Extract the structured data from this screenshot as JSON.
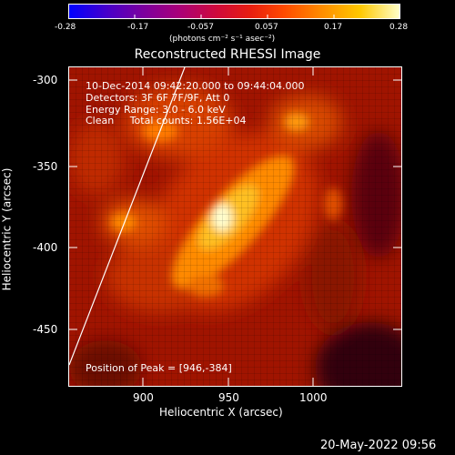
{
  "colorbar": {
    "ticks": [
      "-0.28",
      "-0.17",
      "-0.057",
      "0.057",
      "0.17",
      "0.28"
    ],
    "units": "(photons cm⁻² s⁻¹ asec⁻²)"
  },
  "plot": {
    "title": "Reconstructed RHESSI Image",
    "xlabel": "Heliocentric X (arcsec)",
    "ylabel": "Heliocentric Y (arcsec)",
    "xticks": [
      "900",
      "950",
      "1000"
    ],
    "yticks": [
      "-300",
      "-350",
      "-400",
      "-450"
    ],
    "info": {
      "line1": "10-Dec-2014 09:42:20.000 to 09:44:04.000",
      "line2": "Detectors: 3F 6F 7F/9F, Att 0",
      "line3": "Energy Range: 3.0 - 6.0 keV",
      "line4": "Clean     Total counts: 1.56E+04",
      "peak": "Position of Peak = [946,-384]"
    }
  },
  "footer": {
    "timestamp": "20-May-2022 09:56"
  }
}
